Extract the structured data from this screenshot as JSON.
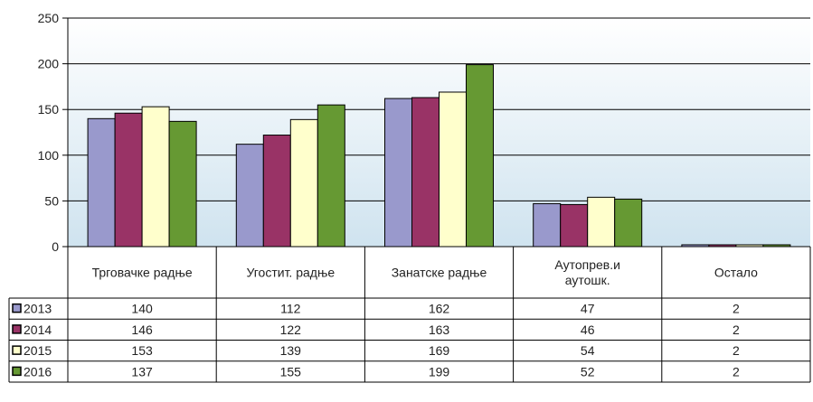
{
  "chart_data": {
    "type": "bar",
    "categories": [
      [
        "Трговачке радње"
      ],
      [
        "Угостит. радње"
      ],
      [
        "Занатске радње"
      ],
      [
        "Аутопрев.и",
        "аутошк."
      ],
      [
        "Остало"
      ]
    ],
    "series": [
      {
        "name": "2013",
        "color": "#9999cc",
        "values": [
          140,
          112,
          162,
          47,
          2
        ]
      },
      {
        "name": "2014",
        "color": "#993366",
        "values": [
          146,
          122,
          163,
          46,
          2
        ]
      },
      {
        "name": "2015",
        "color": "#ffffcc",
        "values": [
          153,
          139,
          169,
          54,
          2
        ]
      },
      {
        "name": "2016",
        "color": "#669933",
        "values": [
          137,
          155,
          199,
          52,
          2
        ]
      }
    ],
    "yticks": [
      "0",
      "50",
      "100",
      "150",
      "200",
      "250"
    ],
    "ylim": [
      0,
      250
    ],
    "grid": true,
    "legend": "data-table-left",
    "plot_background": [
      "#ffffff",
      "#cfe3ef"
    ]
  }
}
